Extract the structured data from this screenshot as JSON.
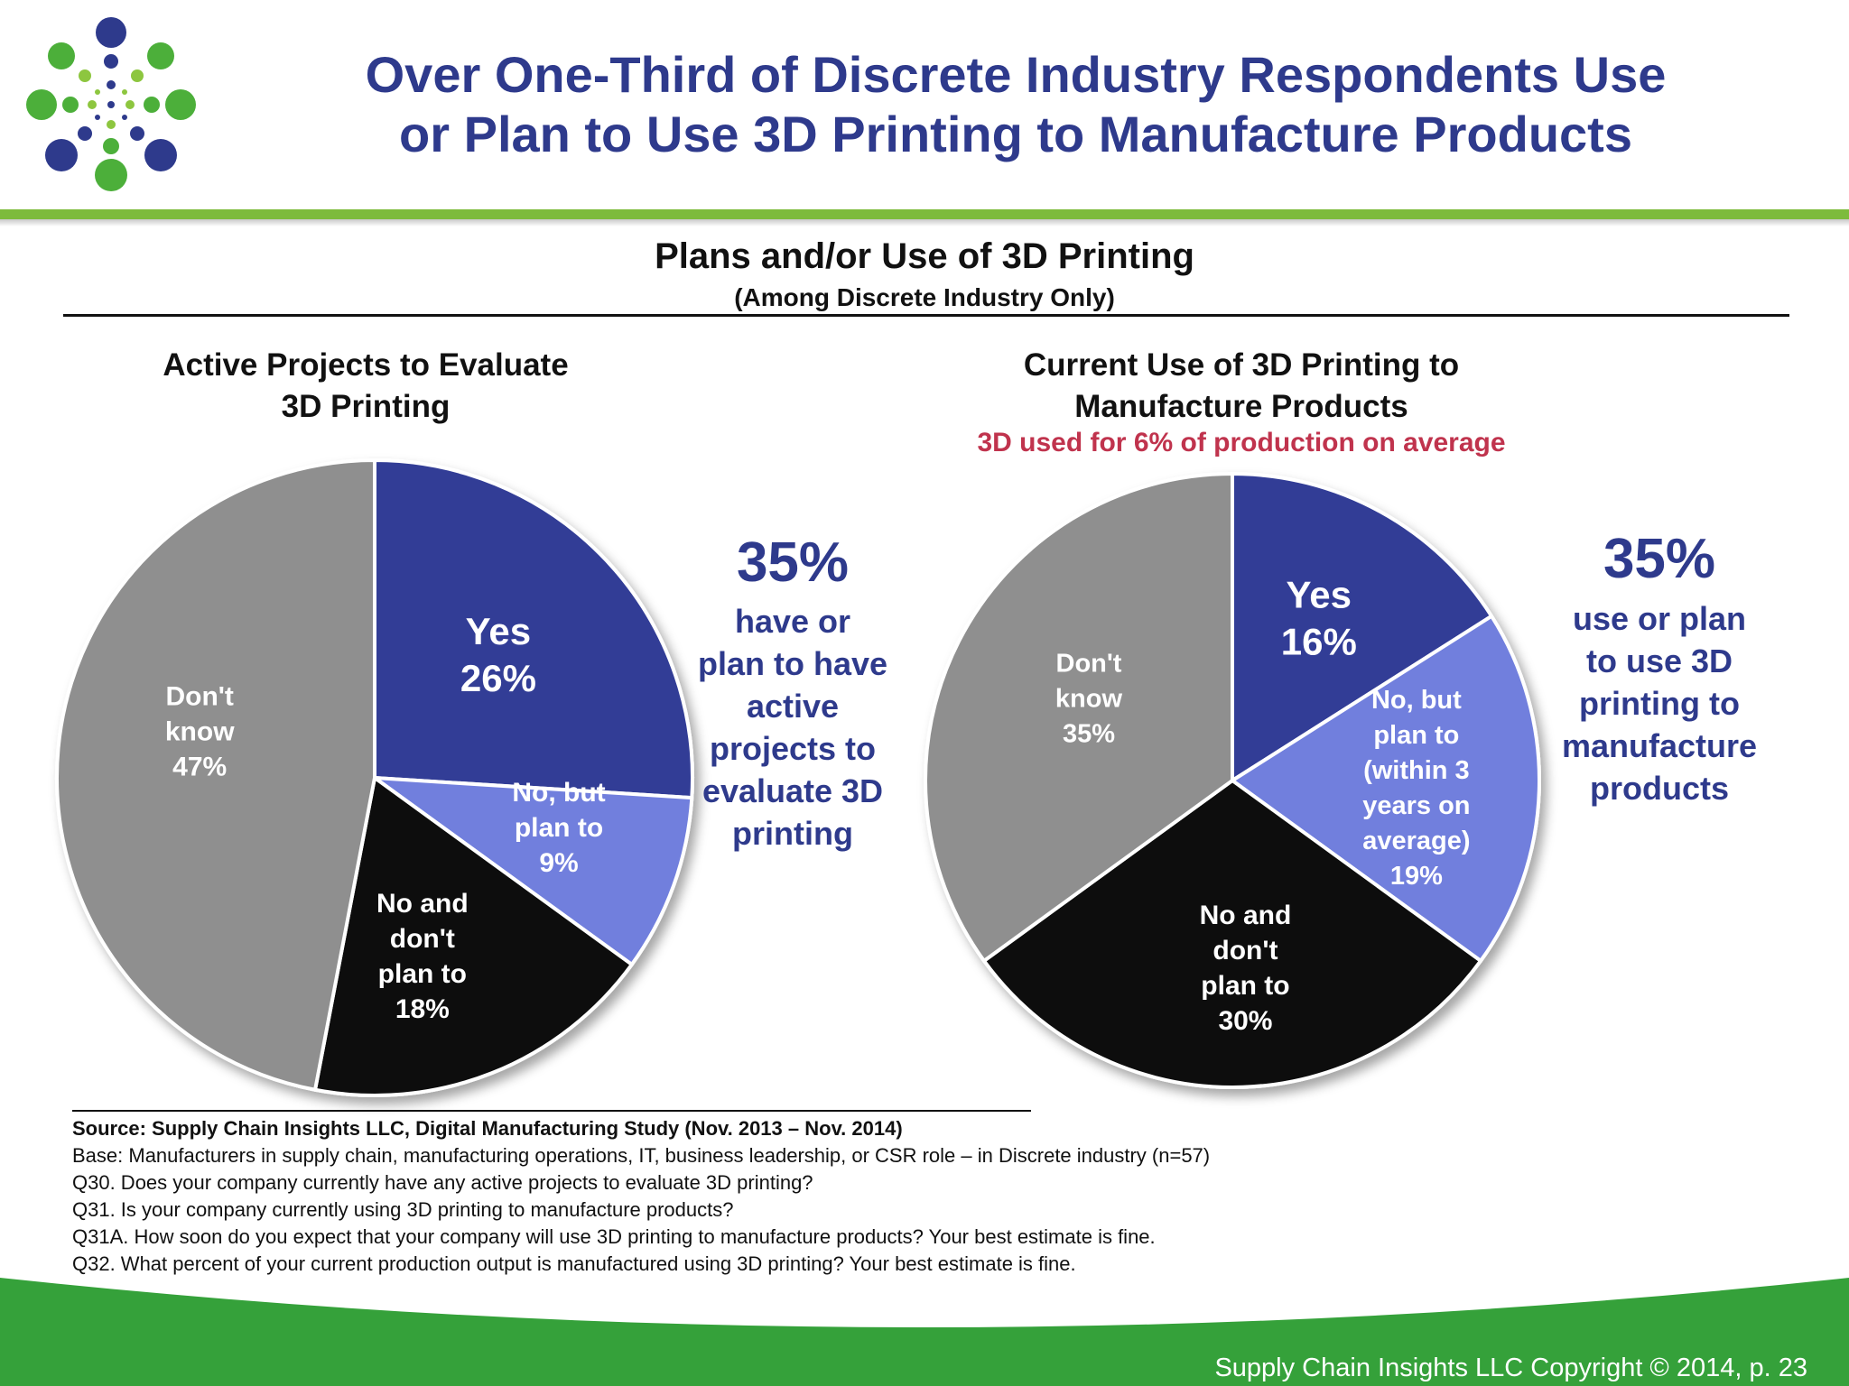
{
  "slide": {
    "title_line1": "Over One-Third of Discrete Industry Respondents Use",
    "title_line2": "or Plan to Use 3D Printing to Manufacture Products",
    "footer": "Supply Chain Insights LLC Copyright © 2014, p. 23"
  },
  "colors": {
    "brand_blue": "#2e3a8c",
    "brand_green": "#7dbb3c",
    "footer_green": "#35a13a",
    "note_red": "#c0334d",
    "yes": "#323d96",
    "plan": "#717fdd",
    "no": "#0a0a0a",
    "dont_know": "#8f8f8f"
  },
  "chart_data": [
    {
      "type": "pie",
      "title": "Plans and/or Use of 3D Printing",
      "subtitle": "(Among  Discrete Industry Only)",
      "panel_title_line1": "Active Projects to Evaluate",
      "panel_title_line2": "3D Printing",
      "slices": [
        {
          "category": "yes",
          "label_lines": [
            "Yes",
            "26%"
          ],
          "value": 26
        },
        {
          "category": "plan",
          "label_lines": [
            "No, but",
            "plan to",
            "9%"
          ],
          "value": 9
        },
        {
          "category": "no",
          "label_lines": [
            "No and",
            "don't",
            "plan to",
            "18%"
          ],
          "value": 18
        },
        {
          "category": "dont_know",
          "label_lines": [
            "Don't",
            "know",
            "47%"
          ],
          "value": 47
        }
      ],
      "callout": {
        "value": "35%",
        "lines": [
          "have or",
          "plan to have",
          "active",
          "projects to",
          "evaluate 3D",
          "printing"
        ]
      }
    },
    {
      "type": "pie",
      "panel_title_line1": "Current Use of 3D Printing to",
      "panel_title_line2": "Manufacture Products",
      "note": "3D used for 6%  of production on average",
      "slices": [
        {
          "category": "yes",
          "label_lines": [
            "Yes",
            "16%"
          ],
          "value": 16
        },
        {
          "category": "plan",
          "label_lines": [
            "No, but",
            "plan to",
            "(within 3",
            "years on",
            "average)",
            "19%"
          ],
          "value": 19
        },
        {
          "category": "no",
          "label_lines": [
            "No and",
            "don't",
            "plan to",
            "30%"
          ],
          "value": 30
        },
        {
          "category": "dont_know",
          "label_lines": [
            "Don't",
            "know",
            "35%"
          ],
          "value": 35
        }
      ],
      "callout": {
        "value": "35%",
        "lines": [
          "use or plan",
          "to use 3D",
          "printing to",
          "manufacture",
          "products"
        ]
      }
    }
  ],
  "source": {
    "heading": "Source:  Supply Chain Insights LLC, Digital Manufacturing Study (Nov. 2013 – Nov. 2014)",
    "lines": [
      "Base: Manufacturers in supply chain, manufacturing operations, IT, business leadership, or CSR role – in Discrete industry (n=57)",
      "Q30. Does your company currently have any active projects to evaluate 3D printing?",
      "Q31. Is your company currently using 3D printing to manufacture products?",
      "Q31A. How soon do you expect that your company will use 3D printing to manufacture products? Your best estimate is fine.",
      "Q32. What percent of your current production output is manufactured using 3D printing? Your best estimate is fine."
    ]
  }
}
